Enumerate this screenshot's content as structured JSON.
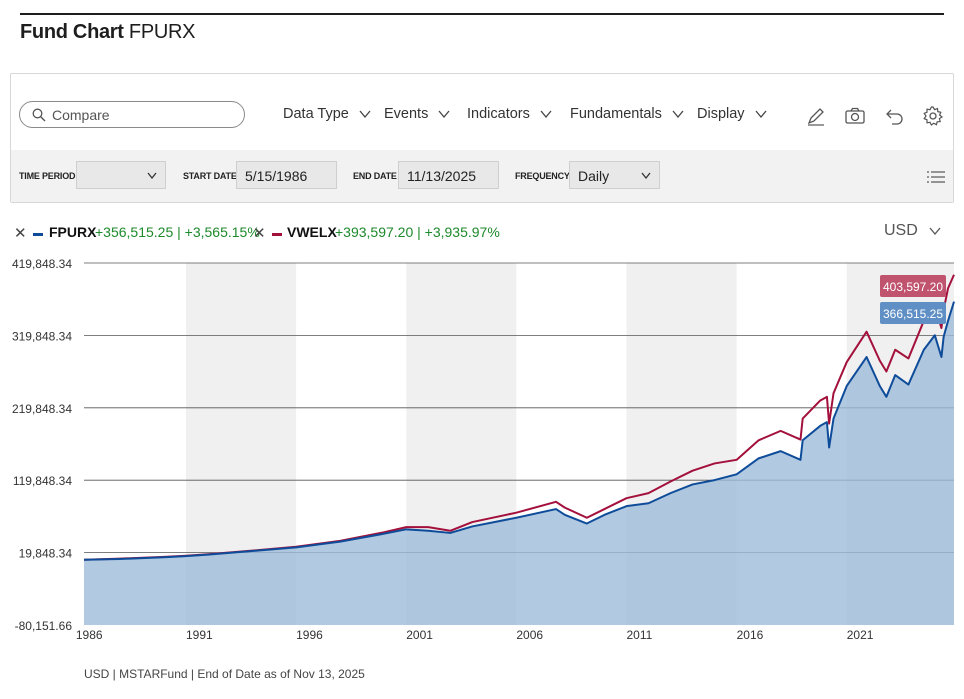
{
  "header": {
    "title_bold": "Fund Chart",
    "title_ticker": "FPURX"
  },
  "toolbar": {
    "search_placeholder": "Compare",
    "menus": [
      "Data Type",
      "Events",
      "Indicators",
      "Fundamentals",
      "Display"
    ],
    "tools": [
      "draw-icon",
      "camera-icon",
      "undo-icon",
      "settings-icon"
    ]
  },
  "filters": {
    "time_period_label": "TIME PERIOD",
    "time_period_value": "",
    "start_date_label": "START DATE",
    "start_date": "5/15/1986",
    "end_date_label": "END DATE",
    "end_date": "11/13/2025",
    "frequency_label": "FREQUENCY",
    "frequency": "Daily"
  },
  "legend": [
    {
      "ticker": "FPURX",
      "change": "+356,515.25 | +3,565.15%",
      "color": "#0e4c9a"
    },
    {
      "ticker": "VWELX",
      "change": "+393,597.20 | +3,935.97%",
      "color": "#a3103b"
    }
  ],
  "currency": "USD",
  "footer": "USD | MSTARFund | End of Date as of Nov 13, 2025",
  "colors": {
    "fpurx": "#0e4c9a",
    "vwelx": "#a3103b",
    "area": "#9dbbd9",
    "band": "#f0f0f0"
  },
  "chart_data": {
    "type": "line",
    "x_range": [
      1986.37,
      2025.87
    ],
    "ylim": [
      -80151.66,
      419848.34
    ],
    "y_ticks": [
      419848.34,
      319848.34,
      219848.34,
      119848.34,
      19848.34,
      -80151.66
    ],
    "y_tick_labels": [
      "419,848.34",
      "319,848.34",
      "219,848.34",
      "119,848.34",
      "19,848.34",
      "-80,151.66"
    ],
    "x_ticks": [
      1986,
      1991,
      1996,
      2001,
      2006,
      2011,
      2016,
      2021
    ],
    "shaded_periods": [
      [
        1991,
        1996
      ],
      [
        2001,
        2006
      ],
      [
        2011,
        2016
      ],
      [
        2021,
        2025.87
      ]
    ],
    "grid": true,
    "series": [
      {
        "name": "FPURX",
        "last_value_label": "366,515.25",
        "x": [
          1986.37,
          1988,
          1990,
          1991,
          1992,
          1994,
          1996,
          1998,
          2000,
          2001,
          2002,
          2003,
          2004,
          2006,
          2007.8,
          2008.2,
          2009.2,
          2010,
          2011,
          2012,
          2013,
          2014,
          2015,
          2016,
          2017,
          2018,
          2018.9,
          2019,
          2019.8,
          2020.1,
          2020.2,
          2020.4,
          2021,
          2021.9,
          2022.5,
          2022.8,
          2023.2,
          2023.8,
          2024.5,
          2025.0,
          2025.3,
          2025.4,
          2025.6,
          2025.87
        ],
        "y": [
          10000,
          11000,
          13500,
          15000,
          17000,
          22000,
          27000,
          35000,
          46000,
          52000,
          50000,
          47000,
          56000,
          68000,
          80000,
          72000,
          60000,
          72000,
          84000,
          88000,
          102000,
          114000,
          120000,
          128000,
          150000,
          160000,
          148000,
          175000,
          195000,
          200000,
          165000,
          205000,
          250000,
          290000,
          250000,
          235000,
          265000,
          252000,
          300000,
          320000,
          290000,
          318000,
          340000,
          366515.25
        ]
      },
      {
        "name": "VWELX",
        "last_value_label": "403,597.20",
        "x": [
          1986.37,
          1988,
          1990,
          1991,
          1992,
          1994,
          1996,
          1998,
          2000,
          2001,
          2002,
          2003,
          2004,
          2006,
          2007.8,
          2008.2,
          2009.2,
          2010,
          2011,
          2012,
          2013,
          2014,
          2015,
          2016,
          2017,
          2018,
          2018.9,
          2019,
          2019.8,
          2020.1,
          2020.2,
          2020.4,
          2021,
          2021.9,
          2022.5,
          2022.8,
          2023.2,
          2023.8,
          2024.5,
          2025.0,
          2025.3,
          2025.4,
          2025.6,
          2025.87
        ],
        "y": [
          10000,
          11500,
          14000,
          15500,
          17500,
          22500,
          28000,
          36000,
          48000,
          55000,
          55000,
          50000,
          62000,
          75000,
          90000,
          82000,
          68000,
          80000,
          95000,
          102000,
          118000,
          133000,
          143000,
          148000,
          175000,
          188000,
          176000,
          205000,
          230000,
          235000,
          198000,
          240000,
          283000,
          325000,
          285000,
          270000,
          300000,
          288000,
          340000,
          360000,
          330000,
          355000,
          385000,
          403597.2
        ]
      }
    ]
  }
}
